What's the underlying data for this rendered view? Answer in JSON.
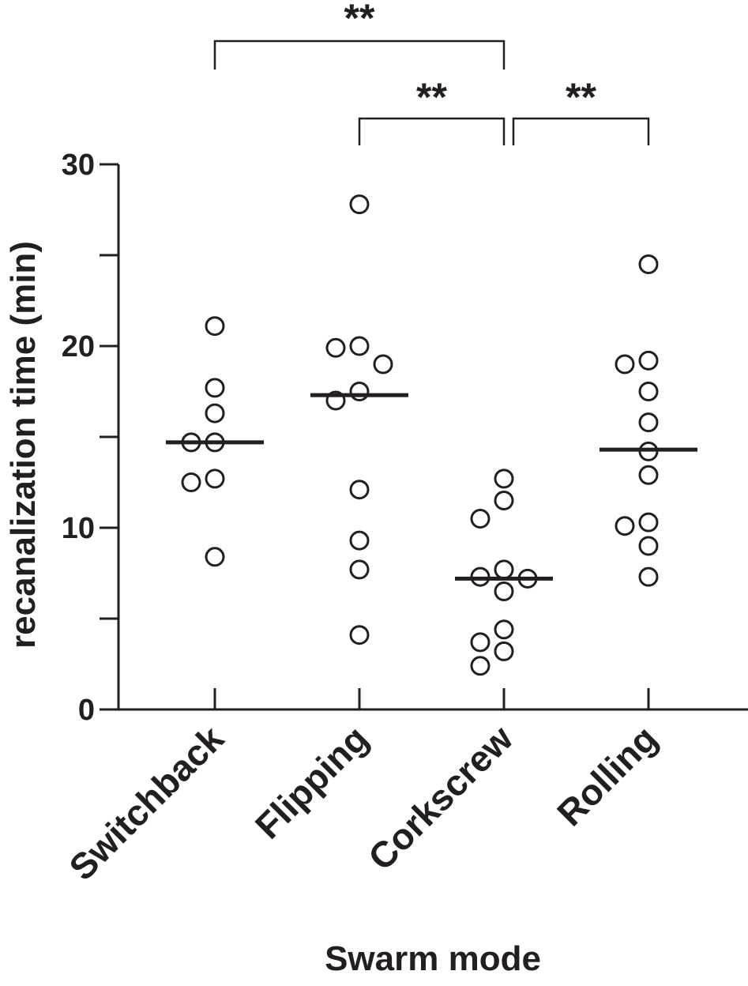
{
  "chart_data": {
    "type": "scatter",
    "xlabel": "Swarm mode",
    "ylabel": "recanalization time (min)",
    "ylim": [
      0,
      30
    ],
    "yticks": [
      0,
      10,
      20,
      30
    ],
    "categories": [
      "Switchback",
      "Flipping",
      "Corkscrew",
      "Rolling"
    ],
    "colors": {
      "ink": "#231f20",
      "marker_fill": "#ffffff"
    },
    "series": [
      {
        "values": [
          21.1,
          17.7,
          16.3,
          14.7,
          14.7,
          12.7,
          12.5,
          8.4
        ],
        "median": 14.7
      },
      {
        "values": [
          27.8,
          20.0,
          19.9,
          19.0,
          17.5,
          17.0,
          12.1,
          9.3,
          7.7,
          4.1
        ],
        "median": 17.3
      },
      {
        "values": [
          12.7,
          11.5,
          10.5,
          7.7,
          7.3,
          7.2,
          6.5,
          4.4,
          3.7,
          3.2,
          2.4
        ],
        "median": 7.2
      },
      {
        "values": [
          24.5,
          19.2,
          19.0,
          17.5,
          15.8,
          14.2,
          12.9,
          10.3,
          10.1,
          9.0,
          7.3
        ],
        "median": 14.3
      }
    ],
    "significance": [
      {
        "from": "Switchback",
        "to": "Corkscrew",
        "label": "**"
      },
      {
        "from": "Flipping",
        "to": "Corkscrew",
        "label": "**"
      },
      {
        "from": "Corkscrew",
        "to": "Rolling",
        "label": "**"
      }
    ]
  }
}
